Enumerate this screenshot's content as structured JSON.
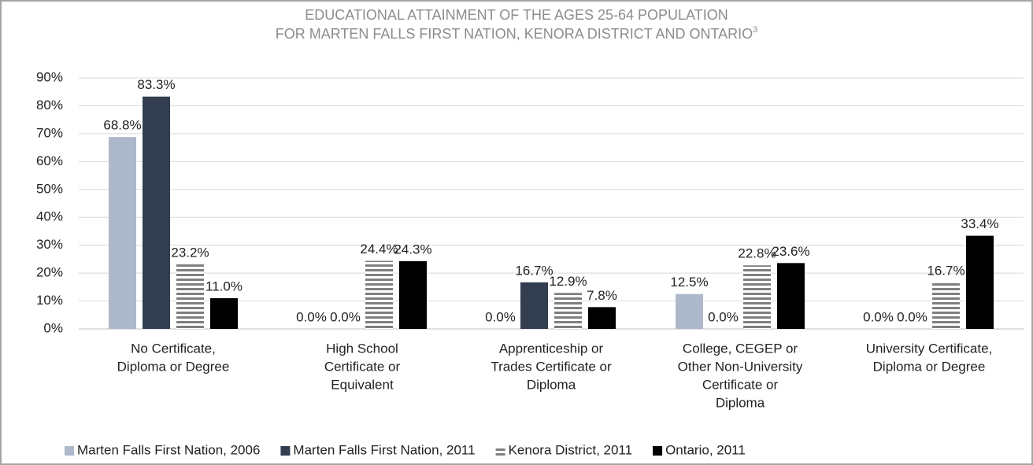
{
  "chart_data": {
    "type": "bar",
    "title": [
      "EDUCATIONAL ATTAINMENT OF THE AGES 25-64 POPULATION",
      "FOR MARTEN FALLS FIRST NATION, KENORA DISTRICT AND ONTARIO"
    ],
    "title_superscript": "3",
    "categories": [
      [
        "No Certificate,",
        "Diploma or Degree"
      ],
      [
        "High School",
        "Certificate or",
        "Equivalent"
      ],
      [
        "Apprenticeship or",
        "Trades Certificate or",
        "Diploma"
      ],
      [
        "College, CEGEP or",
        "Other Non-University",
        "Certificate or",
        "Diploma"
      ],
      [
        "University Certificate,",
        "Diploma or Degree"
      ]
    ],
    "series": [
      {
        "name": "Marten Falls First Nation, 2006",
        "color": "#adb9ca",
        "values": [
          68.8,
          0,
          0,
          12.5,
          0
        ],
        "value_labels": [
          "68.8%",
          "0.0%",
          "0.0%",
          "12.5%",
          "0.0%"
        ]
      },
      {
        "name": "Marten Falls First Nation, 2011",
        "color": "#323e4f",
        "values": [
          83.3,
          0,
          16.7,
          0,
          0
        ],
        "value_labels": [
          "83.3%",
          "0.0%",
          "16.7%",
          "0.0%",
          "0.0%"
        ]
      },
      {
        "name": "Kenora District, 2011",
        "color": "#7f7f7f",
        "pattern": "horizontal-stripes",
        "values": [
          23.2,
          24.4,
          12.9,
          22.8,
          16.7
        ],
        "value_labels": [
          "23.2%",
          "24.4%",
          "12.9%",
          "22.8%",
          "16.7%"
        ]
      },
      {
        "name": "Ontario, 2011",
        "color": "#000000",
        "values": [
          11.0,
          24.3,
          7.8,
          23.6,
          33.4
        ],
        "value_labels": [
          "11.0%",
          "24.3%",
          "7.8%",
          "23.6%",
          "33.4%"
        ]
      }
    ],
    "ylim": [
      0,
      90
    ],
    "yticks": [
      {
        "value": 0,
        "label": "0%"
      },
      {
        "value": 10,
        "label": "10%"
      },
      {
        "value": 20,
        "label": "20%"
      },
      {
        "value": 30,
        "label": "30%"
      },
      {
        "value": 40,
        "label": "40%"
      },
      {
        "value": 50,
        "label": "50%"
      },
      {
        "value": 60,
        "label": "60%"
      },
      {
        "value": 70,
        "label": "70%"
      },
      {
        "value": 80,
        "label": "80%"
      },
      {
        "value": 90,
        "label": "90%"
      }
    ],
    "grid": true,
    "legend": "bottom"
  }
}
